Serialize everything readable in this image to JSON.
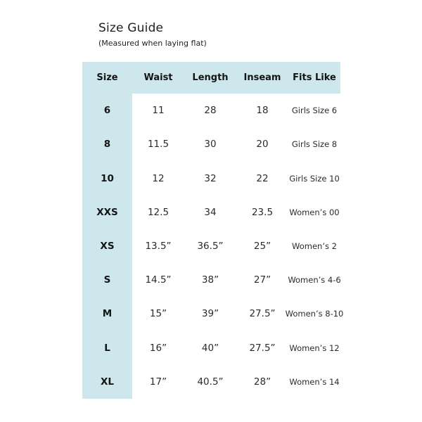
{
  "title": "Size Guide",
  "subtitle": "(Measured when laying flat)",
  "colors": {
    "header_bg": "#cde7ed",
    "text_dark": "#1f1f1f"
  },
  "chart_data": {
    "type": "table",
    "title": "Size Guide",
    "subtitle": "(Measured when laying flat)",
    "columns": [
      "Size",
      "Waist",
      "Length",
      "Inseam",
      "Fits Like"
    ],
    "rows": [
      [
        "6",
        "11",
        "28",
        "18",
        "Girls Size 6"
      ],
      [
        "8",
        "11.5",
        "30",
        "20",
        "Girls Size 8"
      ],
      [
        "10",
        "12",
        "32",
        "22",
        "Girls Size 10"
      ],
      [
        "XXS",
        "12.5",
        "34",
        "23.5",
        "Women’s 00"
      ],
      [
        "XS",
        "13.5”",
        "36.5”",
        "25”",
        "Women’s 2"
      ],
      [
        "S",
        "14.5”",
        "38”",
        "27”",
        "Women’s 4-6"
      ],
      [
        "M",
        "15”",
        "39”",
        "27.5”",
        "Women’s 8-10"
      ],
      [
        "L",
        "16”",
        "40”",
        "27.5”",
        "Women’s 12"
      ],
      [
        "XL",
        "17”",
        "40.5”",
        "28”",
        "Women’s 14"
      ]
    ],
    "layout_hints": {
      "header_row_and_size_column_highlighted": true,
      "grid_lines": false,
      "body_background": "#ffffff"
    }
  }
}
